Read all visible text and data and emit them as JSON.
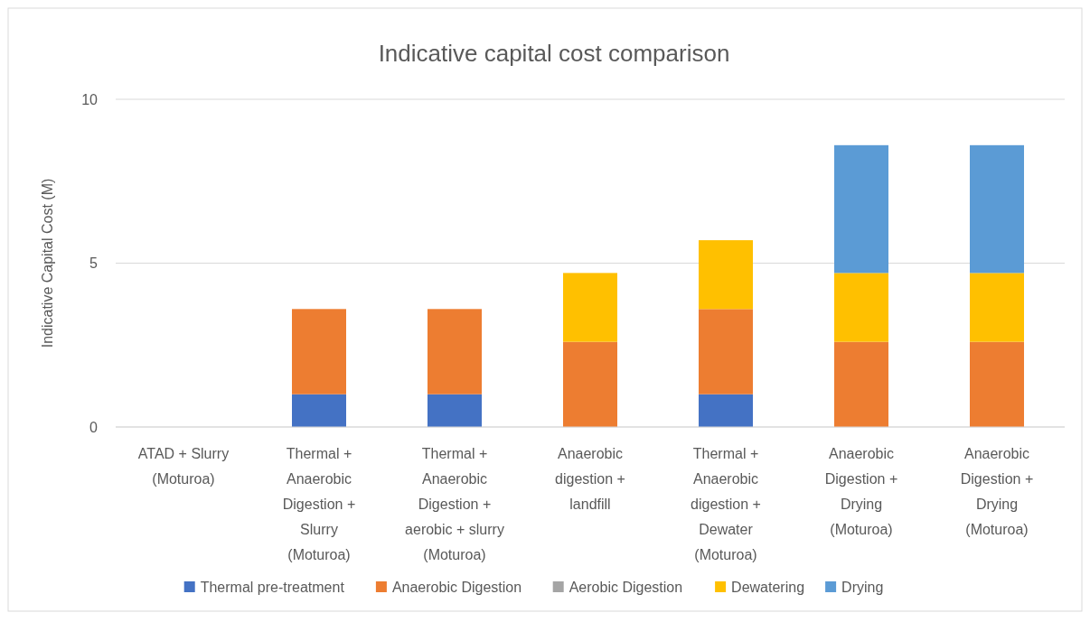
{
  "chart_data": {
    "type": "bar",
    "title": "Indicative capital cost comparison",
    "ylabel": "Indicative Capital Cost (M)",
    "stacked": true,
    "categories": [
      "ATAD + Slurry\n(Moturoa)",
      "Thermal +\nAnaerobic\nDigestion +\nSlurry\n(Moturoa)",
      "Thermal +\nAnaerobic\nDigestion +\naerobic + slurry\n(Moturoa)",
      "Anaerobic\ndigestion +\nlandfill",
      "Thermal +\nAnaerobic\ndigestion +\nDewater\n(Moturoa)",
      "Anaerobic\nDigestion +\nDrying\n(Moturoa)",
      "Anaerobic\nDigestion +\nDrying\n(Moturoa)"
    ],
    "series": [
      {
        "name": "Thermal pre-treatment",
        "color": "#4472c4",
        "values": [
          0,
          1.0,
          1.0,
          0,
          1.0,
          0,
          0
        ]
      },
      {
        "name": "Anaerobic Digestion",
        "color": "#ed7d31",
        "values": [
          0,
          2.6,
          2.6,
          2.6,
          2.6,
          2.6,
          2.6
        ]
      },
      {
        "name": "Aerobic Digestion",
        "color": "#a5a5a5",
        "values": [
          0,
          0,
          0,
          0,
          0,
          0,
          0
        ]
      },
      {
        "name": "Dewatering",
        "color": "#ffc000",
        "values": [
          0,
          0,
          0,
          2.1,
          2.1,
          2.1,
          2.1
        ]
      },
      {
        "name": "Drying",
        "color": "#5b9bd5",
        "values": [
          0,
          0,
          0,
          0,
          0,
          3.9,
          3.9
        ]
      }
    ],
    "ylim": [
      0,
      10
    ],
    "yticks": [
      0,
      5,
      10
    ],
    "grid": "y",
    "legend": "bottom"
  }
}
